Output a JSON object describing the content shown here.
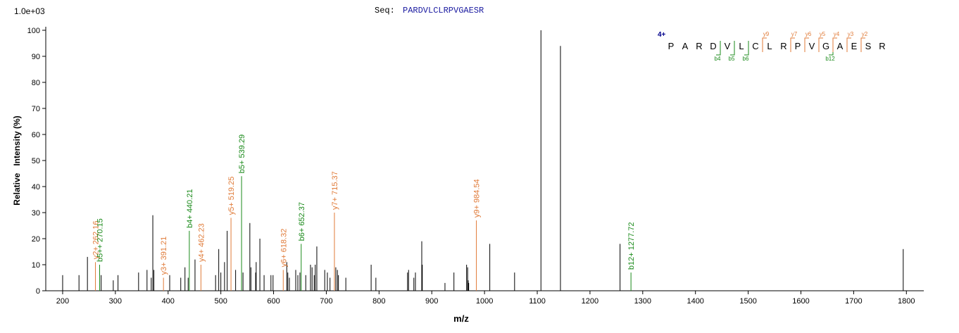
{
  "chart_data": {
    "type": "stem",
    "title_prefix": "Seq:",
    "title": "PARDVLCLRPVGAESR",
    "scale_label": "1.0e+03",
    "xlabel": "m/z",
    "ylabel": "Relative   Intensity (%)",
    "xlim": [
      168,
      1833
    ],
    "ylim": [
      0,
      100
    ],
    "xticks": [
      200,
      300,
      400,
      500,
      600,
      700,
      800,
      900,
      1000,
      1100,
      1200,
      1300,
      1400,
      1500,
      1600,
      1700,
      1800
    ],
    "yticks": [
      0,
      10,
      20,
      30,
      40,
      50,
      60,
      70,
      80,
      90,
      100
    ],
    "series": [
      {
        "color": "#000000",
        "x": [
          200,
          231,
          247,
          273,
          296,
          305,
          344,
          360,
          368,
          371,
          373,
          403,
          424,
          432,
          438,
          451,
          490,
          496,
          500,
          507,
          512,
          528,
          542,
          555,
          557,
          566,
          567,
          574,
          582,
          595,
          599,
          625,
          627,
          630,
          642,
          646,
          650,
          661,
          670,
          673,
          677,
          679,
          682,
          697,
          702,
          707,
          718,
          721,
          723,
          737,
          785,
          794,
          854,
          856,
          866,
          869,
          881,
          882,
          925,
          942,
          966,
          968,
          969,
          970,
          1010,
          1057,
          1107,
          1144,
          1257,
          1794
        ],
        "values": [
          6,
          6,
          13,
          6,
          4,
          6,
          7,
          8,
          5,
          29,
          8,
          6,
          5,
          9,
          5,
          12,
          6,
          16,
          7,
          11,
          23,
          8,
          7,
          26,
          9,
          7,
          11,
          20,
          6,
          6,
          6,
          11,
          7,
          5,
          8,
          6,
          7,
          6,
          10,
          9,
          6,
          10,
          17,
          8,
          7,
          5,
          9,
          8,
          6,
          5,
          10,
          5,
          7,
          8,
          5,
          7,
          19,
          10,
          3,
          7,
          10,
          9,
          4,
          3,
          18,
          7,
          100,
          94,
          18,
          16
        ]
      },
      {
        "color": "#e07b39",
        "x": [
          262.16,
          391.21,
          462.23,
          519.25,
          618.32,
          715.37,
          984.54
        ],
        "values": [
          11,
          5,
          10,
          28,
          8,
          30,
          27
        ],
        "labels": [
          "y2+ 262.16",
          "y3+ 391.21",
          "y4+ 462.23",
          "y5+ 519.25",
          "y6+ 618.32",
          "y7+ 715.37",
          "y9+ 984.54"
        ]
      },
      {
        "color": "#1a8a1a",
        "x": [
          270.15,
          440.21,
          539.29,
          652.37,
          1277.72
        ],
        "values": [
          10,
          23,
          44,
          18,
          7
        ],
        "labels": [
          "b5++ 270.15",
          "b4+ 440.21",
          "b5+ 539.29",
          "b6+ 652.37",
          "b12+ 1277.72"
        ]
      }
    ],
    "fragment_map": {
      "charge": "4+",
      "residues": [
        "P",
        "A",
        "R",
        "D",
        "V",
        "L",
        "C",
        "L",
        "R",
        "P",
        "V",
        "G",
        "A",
        "E",
        "S",
        "R"
      ],
      "b_ions": [
        "b4",
        "b5",
        "b6",
        "b12"
      ],
      "y_ions": [
        "y9",
        "y7",
        "y6",
        "y5",
        "y4",
        "y3",
        "y2"
      ],
      "b_color": "#1a8a1a",
      "y_color": "#e07b39",
      "charge_color": "#00008b"
    }
  }
}
